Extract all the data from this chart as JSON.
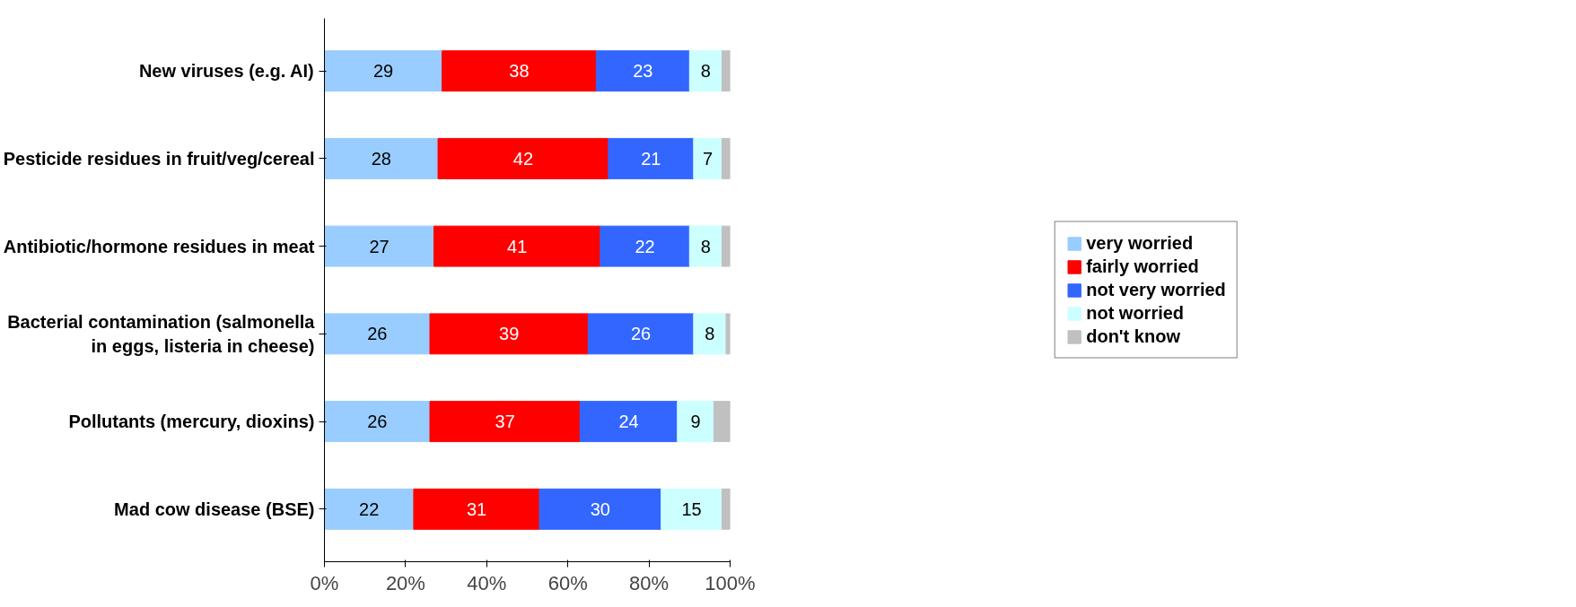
{
  "chart_data": {
    "type": "bar",
    "orientation": "horizontal",
    "stacked": true,
    "categories": [
      "New viruses (e.g. AI)",
      "Pesticide residues in fruit/veg/cereal",
      "Antibiotic/hormone residues in meat",
      "Bacterial contamination (salmonella in eggs, listeria in cheese)",
      "Pollutants (mercury, dioxins)",
      "Mad cow disease (BSE)"
    ],
    "series": [
      {
        "name": "very worried",
        "color": "#99ccff",
        "values": [
          29,
          28,
          27,
          26,
          26,
          22
        ],
        "value_labels": [
          "29",
          "28",
          "27",
          "26",
          "26",
          "22"
        ]
      },
      {
        "name": "fairly worried",
        "color": "#ff0000",
        "values": [
          38,
          42,
          41,
          39,
          37,
          31
        ],
        "value_labels": [
          "38",
          "42",
          "41",
          "39",
          "37",
          "31"
        ]
      },
      {
        "name": "not very worried",
        "color": "#3366ff",
        "values": [
          23,
          21,
          22,
          26,
          24,
          30
        ],
        "value_labels": [
          "23",
          "21",
          "22",
          "26",
          "24",
          "30"
        ]
      },
      {
        "name": "not worried",
        "color": "#ccffff",
        "values": [
          8,
          7,
          8,
          8,
          9,
          15
        ],
        "value_labels": [
          "8",
          "7",
          "8",
          "8",
          "9",
          "15"
        ]
      },
      {
        "name": "don't know",
        "color": "#c0c0c0",
        "values": [
          2,
          2,
          2,
          1,
          4,
          2
        ],
        "value_labels": [
          null,
          null,
          null,
          null,
          null,
          null
        ]
      }
    ],
    "xlim": [
      0,
      100
    ],
    "xticks": [
      {
        "value": 0,
        "label": "0%"
      },
      {
        "value": 20,
        "label": "20%"
      },
      {
        "value": 40,
        "label": "40%"
      },
      {
        "value": 60,
        "label": "60%"
      },
      {
        "value": 80,
        "label": "80%"
      },
      {
        "value": 100,
        "label": "100%"
      }
    ],
    "grid": false,
    "legend": "right"
  }
}
